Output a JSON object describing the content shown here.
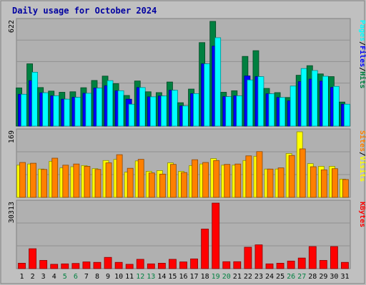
{
  "chart_data": {
    "type": "bar",
    "title": "Daily usage for October 2024",
    "categories": [
      "1",
      "2",
      "3",
      "4",
      "5",
      "6",
      "7",
      "8",
      "9",
      "10",
      "11",
      "12",
      "13",
      "14",
      "15",
      "16",
      "17",
      "18",
      "19",
      "20",
      "21",
      "22",
      "23",
      "24",
      "25",
      "26",
      "27",
      "28",
      "29",
      "30",
      "31"
    ],
    "weekend_days": [
      "5",
      "6",
      "12",
      "13",
      "19",
      "20",
      "26",
      "27"
    ],
    "panels": [
      {
        "id": "hits",
        "max_label": "622",
        "ylim": [
          0,
          622
        ],
        "series": [
          {
            "name": "Hits",
            "color": "#008040",
            "values": [
              227,
              370,
              229,
              208,
              201,
              204,
              228,
              271,
              297,
              252,
              182,
              268,
              204,
              199,
              262,
              139,
              220,
              496,
              622,
              201,
              210,
              414,
              448,
              224,
              199,
              170,
              302,
              359,
              310,
              294,
              143
            ]
          },
          {
            "name": "Files",
            "color": "#0000ff",
            "values": [
              189,
              270,
              198,
              180,
              160,
              171,
              195,
              226,
              240,
              210,
              160,
              229,
              174,
              179,
              213,
              120,
              193,
              370,
              475,
              175,
              180,
              298,
              294,
              192,
              170,
              150,
              264,
              279,
              267,
              230,
              130
            ]
          },
          {
            "name": "Pages",
            "color": "#00ffff",
            "values": [
              189,
              320,
              198,
              180,
              160,
              171,
              195,
              226,
              270,
              210,
              130,
              229,
              174,
              179,
              213,
              120,
              193,
              370,
              525,
              175,
              180,
              274,
              294,
              192,
              170,
              238,
              342,
              330,
              296,
              236,
              130
            ]
          }
        ],
        "labels_right": [
          "Pages",
          "Files",
          "Hits"
        ]
      },
      {
        "id": "visits",
        "max_label": "169",
        "ylim": [
          0,
          169
        ],
        "series": [
          {
            "name": "Visits",
            "color": "#ffff00",
            "values": [
              83,
              86,
              73,
              93,
              76,
              79,
              82,
              74,
              95,
              98,
              65,
              94,
              67,
              69,
              89,
              67,
              82,
              86,
              100,
              83,
              83,
              95,
              106,
              73,
              73,
              113,
              169,
              87,
              80,
              80,
              47
            ]
          },
          {
            "name": "Sites",
            "color": "#ff8000",
            "values": [
              90,
              88,
              72,
              101,
              83,
              86,
              80,
              72,
              89,
              110,
              75,
              98,
              63,
              60,
              85,
              64,
              97,
              90,
              95,
              85,
              86,
              107,
              118,
              73,
              76,
              108,
              125,
              79,
              71,
              74,
              46
            ]
          }
        ],
        "labels_right": [
          "Sites",
          "Visits"
        ]
      },
      {
        "id": "kbytes",
        "max_label": "30313",
        "ylim": [
          0,
          30313
        ],
        "series": [
          {
            "name": "KBytes",
            "color": "#ff0000",
            "values": [
              2500,
              9200,
              3800,
              2000,
              2200,
              2400,
              3100,
              2900,
              5200,
              2900,
              2000,
              4300,
              2200,
              2500,
              4300,
              3100,
              4500,
              18300,
              30300,
              3200,
              3200,
              9900,
              11000,
              2200,
              2500,
              3500,
              4900,
              10200,
              3800,
              10200,
              2900
            ]
          }
        ],
        "labels_right": [
          "KBytes"
        ]
      }
    ]
  }
}
